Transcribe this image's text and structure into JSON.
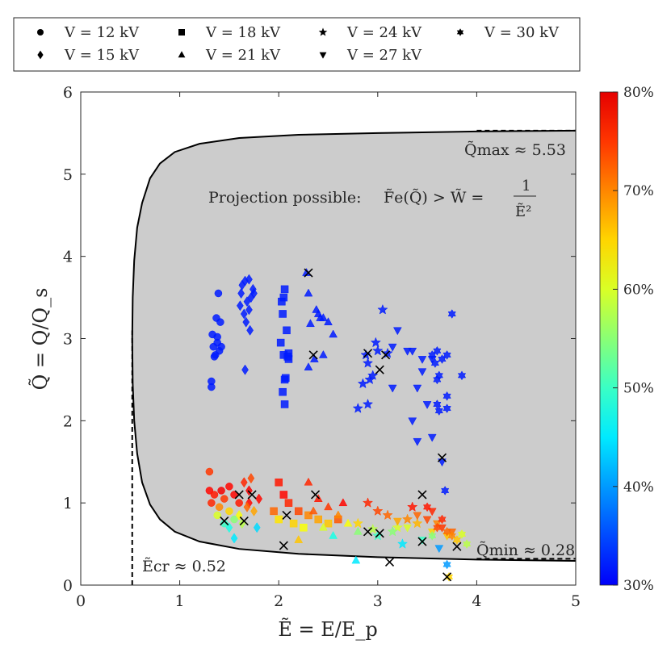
{
  "chart_data": {
    "type": "scatter",
    "xlabel": "Ẽ = E/E_p",
    "ylabel": "Q̃ = Q/Q_s",
    "xlim": [
      0,
      5
    ],
    "ylim": [
      0,
      6
    ],
    "xticks": [
      "0",
      "1",
      "2",
      "3",
      "4",
      "5"
    ],
    "yticks": [
      "0",
      "1",
      "2",
      "3",
      "4",
      "5",
      "6"
    ],
    "grid": false,
    "legend_position": "top (outside)",
    "colorbar": {
      "range_percent": [
        30,
        80
      ],
      "ticks": [
        "30%",
        "40%",
        "50%",
        "60%",
        "70%",
        "80%"
      ],
      "colormap": "jet"
    },
    "region": {
      "fill": "#cccccc",
      "label": "Projection possible:",
      "condition": "F̃e(Q̃) > W̃ =",
      "fraction_num": "1",
      "fraction_den": "Ẽ²"
    },
    "annotations": {
      "qmax": "Q̃max ≈ 5.53",
      "qmin": "Q̃min ≈ 0.28",
      "ecr": "Ẽcr ≈ 0.52"
    },
    "thresholds": {
      "E_cr": 0.52,
      "Q_max": 5.53,
      "Q_min": 0.28
    },
    "point_format": "[E, Q, percent]",
    "series": [
      {
        "name": "V = 12 kV",
        "marker": "circle",
        "points": [
          [
            1.32,
            2.41,
            32
          ],
          [
            1.32,
            2.48,
            32
          ],
          [
            1.39,
            3.55,
            32
          ],
          [
            1.37,
            3.25,
            32
          ],
          [
            1.41,
            3.2,
            32
          ],
          [
            1.34,
            2.9,
            32
          ],
          [
            1.38,
            2.95,
            32
          ],
          [
            1.42,
            2.9,
            32
          ],
          [
            1.36,
            2.8,
            32
          ],
          [
            1.4,
            2.85,
            32
          ],
          [
            1.33,
            3.05,
            32
          ],
          [
            1.38,
            3.02,
            32
          ],
          [
            1.35,
            2.78,
            32
          ],
          [
            1.3,
            1.15,
            78
          ],
          [
            1.35,
            1.1,
            77
          ],
          [
            1.32,
            1.0,
            76
          ],
          [
            1.4,
            0.95,
            70
          ],
          [
            1.45,
            1.05,
            75
          ],
          [
            1.5,
            0.9,
            65
          ],
          [
            1.55,
            0.8,
            55
          ],
          [
            1.38,
            0.85,
            60
          ],
          [
            1.3,
            1.38,
            75
          ],
          [
            1.5,
            1.2,
            78
          ],
          [
            1.6,
            1.0,
            77
          ],
          [
            1.45,
            0.75,
            50
          ],
          [
            1.42,
            1.15,
            79
          ],
          [
            1.55,
            1.1,
            78
          ]
        ]
      },
      {
        "name": "V = 15 kV",
        "marker": "diamond",
        "points": [
          [
            1.63,
            3.65,
            32
          ],
          [
            1.66,
            3.7,
            32
          ],
          [
            1.7,
            3.72,
            32
          ],
          [
            1.74,
            3.6,
            32
          ],
          [
            1.61,
            3.4,
            32
          ],
          [
            1.68,
            3.45,
            32
          ],
          [
            1.72,
            3.5,
            32
          ],
          [
            1.65,
            3.3,
            32
          ],
          [
            1.7,
            3.35,
            32
          ],
          [
            1.75,
            3.55,
            32
          ],
          [
            1.67,
            3.2,
            32
          ],
          [
            1.62,
            3.55,
            32
          ],
          [
            1.71,
            3.1,
            32
          ],
          [
            1.66,
            2.62,
            32
          ],
          [
            1.65,
            1.25,
            76
          ],
          [
            1.72,
            1.3,
            74
          ],
          [
            1.7,
            1.0,
            78
          ],
          [
            1.75,
            0.9,
            68
          ],
          [
            1.6,
            0.85,
            62
          ],
          [
            1.55,
            0.57,
            45
          ],
          [
            1.78,
            0.7,
            44
          ],
          [
            1.68,
            0.95,
            72
          ],
          [
            1.8,
            1.05,
            78
          ],
          [
            1.63,
            0.75,
            58
          ],
          [
            1.7,
            1.15,
            79
          ],
          [
            1.5,
            0.7,
            48
          ]
        ]
      },
      {
        "name": "V = 18 kV",
        "marker": "square",
        "points": [
          [
            2.06,
            3.6,
            32
          ],
          [
            2.05,
            3.5,
            32
          ],
          [
            2.03,
            3.45,
            32
          ],
          [
            2.04,
            3.3,
            32
          ],
          [
            2.08,
            3.1,
            32
          ],
          [
            2.02,
            2.95,
            32
          ],
          [
            2.05,
            2.8,
            32
          ],
          [
            2.09,
            2.78,
            32
          ],
          [
            2.1,
            2.75,
            32
          ],
          [
            2.06,
            2.5,
            32
          ],
          [
            2.07,
            2.52,
            32
          ],
          [
            2.04,
            2.35,
            32
          ],
          [
            2.06,
            2.2,
            32
          ],
          [
            2.1,
            2.82,
            32
          ],
          [
            2.0,
            1.25,
            77
          ],
          [
            2.05,
            1.1,
            78
          ],
          [
            2.1,
            1.0,
            76
          ],
          [
            2.2,
            0.9,
            74
          ],
          [
            2.3,
            0.85,
            70
          ],
          [
            2.4,
            0.8,
            68
          ],
          [
            2.15,
            0.75,
            65
          ],
          [
            1.95,
            0.9,
            72
          ],
          [
            2.25,
            0.7,
            62
          ],
          [
            2.5,
            0.75,
            66
          ],
          [
            2.6,
            0.8,
            73
          ],
          [
            2.0,
            0.8,
            64
          ]
        ]
      },
      {
        "name": "V = 21 kV",
        "marker": "triangle-up",
        "points": [
          [
            2.28,
            3.8,
            32
          ],
          [
            2.3,
            3.55,
            32
          ],
          [
            2.38,
            3.35,
            32
          ],
          [
            2.4,
            3.3,
            32
          ],
          [
            2.45,
            3.25,
            32
          ],
          [
            2.32,
            3.18,
            32
          ],
          [
            2.5,
            3.2,
            32
          ],
          [
            2.42,
            3.25,
            32
          ],
          [
            2.55,
            3.05,
            32
          ],
          [
            2.45,
            2.8,
            32
          ],
          [
            2.36,
            2.75,
            32
          ],
          [
            2.3,
            2.65,
            32
          ],
          [
            2.3,
            1.25,
            76
          ],
          [
            2.4,
            1.05,
            77
          ],
          [
            2.5,
            0.95,
            75
          ],
          [
            2.6,
            0.85,
            70
          ],
          [
            2.45,
            0.7,
            60
          ],
          [
            2.7,
            0.75,
            62
          ],
          [
            2.8,
            0.65,
            55
          ],
          [
            2.55,
            0.6,
            48
          ],
          [
            2.2,
            0.55,
            66
          ],
          [
            2.35,
            0.9,
            73
          ],
          [
            2.78,
            0.3,
            45
          ],
          [
            2.65,
            1.0,
            78
          ]
        ]
      },
      {
        "name": "V = 24 kV",
        "marker": "star",
        "points": [
          [
            2.8,
            2.15,
            32
          ],
          [
            2.9,
            2.2,
            32
          ],
          [
            2.85,
            2.45,
            32
          ],
          [
            2.9,
            2.7,
            32
          ],
          [
            2.98,
            2.95,
            32
          ],
          [
            3.05,
            3.35,
            32
          ],
          [
            3.0,
            2.85,
            32
          ],
          [
            2.88,
            2.8,
            32
          ],
          [
            3.1,
            2.82,
            32
          ],
          [
            2.92,
            2.5,
            32
          ],
          [
            2.95,
            2.55,
            32
          ],
          [
            2.9,
            1.0,
            76
          ],
          [
            3.0,
            0.9,
            74
          ],
          [
            3.1,
            0.85,
            72
          ],
          [
            2.8,
            0.75,
            65
          ],
          [
            3.2,
            0.7,
            60
          ],
          [
            3.3,
            0.8,
            70
          ],
          [
            3.0,
            0.6,
            50
          ],
          [
            2.95,
            0.68,
            58
          ],
          [
            3.35,
            0.95,
            77
          ],
          [
            3.4,
            0.75,
            67
          ],
          [
            3.25,
            0.5,
            45
          ],
          [
            3.15,
            0.65,
            55
          ]
        ]
      },
      {
        "name": "V = 27 kV",
        "marker": "triangle-down",
        "points": [
          [
            3.2,
            3.1,
            32
          ],
          [
            3.15,
            2.9,
            32
          ],
          [
            3.3,
            2.85,
            32
          ],
          [
            3.35,
            2.85,
            32
          ],
          [
            3.45,
            2.75,
            32
          ],
          [
            3.55,
            2.75,
            32
          ],
          [
            3.45,
            2.6,
            32
          ],
          [
            3.4,
            2.4,
            32
          ],
          [
            3.15,
            2.4,
            32
          ],
          [
            3.5,
            2.2,
            32
          ],
          [
            3.35,
            2.0,
            32
          ],
          [
            3.4,
            1.75,
            32
          ],
          [
            3.55,
            1.8,
            32
          ],
          [
            3.65,
            1.5,
            32
          ],
          [
            3.4,
            0.85,
            72
          ],
          [
            3.5,
            0.8,
            74
          ],
          [
            3.6,
            0.75,
            70
          ],
          [
            3.55,
            0.65,
            65
          ],
          [
            3.3,
            0.7,
            60
          ],
          [
            3.7,
            0.6,
            66
          ],
          [
            3.45,
            0.55,
            50
          ],
          [
            3.65,
            0.7,
            75
          ],
          [
            3.2,
            0.78,
            68
          ],
          [
            3.75,
            0.65,
            72
          ],
          [
            3.55,
            0.9,
            76
          ],
          [
            3.62,
            0.45,
            40
          ]
        ]
      },
      {
        "name": "V = 30 kV",
        "marker": "hexagram",
        "points": [
          [
            3.6,
            2.85,
            32
          ],
          [
            3.7,
            2.8,
            32
          ],
          [
            3.65,
            2.75,
            32
          ],
          [
            3.62,
            2.55,
            32
          ],
          [
            3.6,
            2.5,
            32
          ],
          [
            3.7,
            2.3,
            32
          ],
          [
            3.6,
            2.2,
            32
          ],
          [
            3.62,
            2.12,
            32
          ],
          [
            3.7,
            2.15,
            32
          ],
          [
            3.75,
            3.3,
            32
          ],
          [
            3.85,
            2.55,
            32
          ],
          [
            3.55,
            2.8,
            32
          ],
          [
            3.58,
            2.7,
            32
          ],
          [
            3.6,
            0.7,
            74
          ],
          [
            3.7,
            0.65,
            72
          ],
          [
            3.75,
            0.6,
            70
          ],
          [
            3.8,
            0.55,
            66
          ],
          [
            3.65,
            0.8,
            76
          ],
          [
            3.85,
            0.62,
            60
          ],
          [
            3.55,
            0.6,
            55
          ],
          [
            3.7,
            0.25,
            40
          ],
          [
            3.72,
            0.1,
            65
          ],
          [
            3.9,
            0.5,
            58
          ],
          [
            3.5,
            0.95,
            77
          ],
          [
            3.68,
            1.15,
            32
          ]
        ]
      }
    ],
    "x_markers": [
      [
        1.45,
        0.78
      ],
      [
        1.6,
        1.1
      ],
      [
        1.65,
        0.78
      ],
      [
        1.73,
        1.1
      ],
      [
        2.08,
        0.85
      ],
      [
        2.05,
        0.48
      ],
      [
        2.37,
        1.1
      ],
      [
        2.3,
        3.8
      ],
      [
        2.35,
        2.8
      ],
      [
        2.9,
        2.82
      ],
      [
        3.02,
        2.62
      ],
      [
        3.08,
        2.8
      ],
      [
        3.65,
        1.55
      ],
      [
        3.45,
        1.1
      ],
      [
        2.9,
        0.65
      ],
      [
        3.02,
        0.63
      ],
      [
        3.12,
        0.28
      ],
      [
        3.45,
        0.53
      ],
      [
        3.7,
        0.1
      ],
      [
        3.8,
        0.47
      ]
    ]
  }
}
